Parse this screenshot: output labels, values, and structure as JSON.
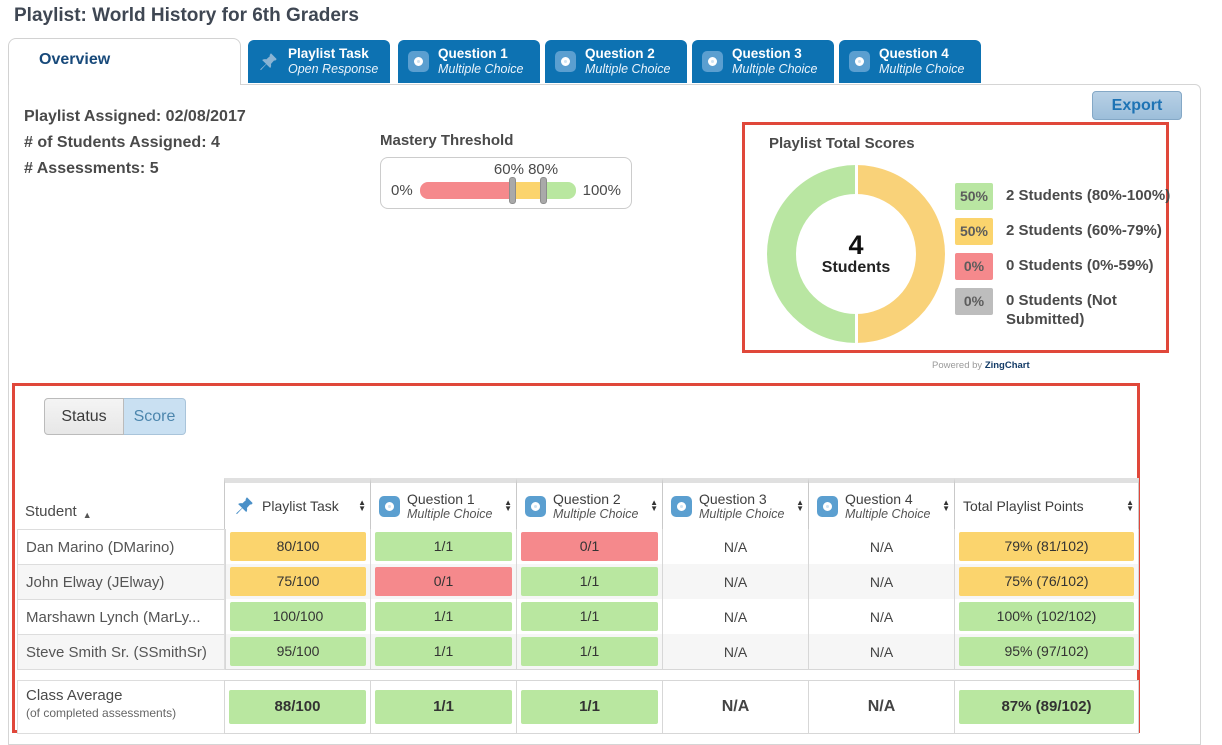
{
  "page": {
    "title": "Playlist: World History for 6th Graders"
  },
  "tabs": {
    "overview": {
      "label": "Overview"
    },
    "assessment_tabs": [
      {
        "label": "Playlist Task",
        "sublabel": "Open Response",
        "icon": "pushpin-icon"
      },
      {
        "label": "Question 1",
        "sublabel": "Multiple Choice",
        "icon": "radio-icon"
      },
      {
        "label": "Question 2",
        "sublabel": "Multiple Choice",
        "icon": "radio-icon"
      },
      {
        "label": "Question 3",
        "sublabel": "Multiple Choice",
        "icon": "radio-icon"
      },
      {
        "label": "Question 4",
        "sublabel": "Multiple Choice",
        "icon": "radio-icon"
      }
    ]
  },
  "toolbar": {
    "export_label": "Export"
  },
  "info": {
    "assigned": "Playlist Assigned: 02/08/2017",
    "students": "# of Students Assigned: 4",
    "assessments": "# Assessments: 5"
  },
  "mastery": {
    "title": "Mastery Threshold",
    "min_label": "0%",
    "max_label": "100%",
    "handles_label": "60% 80%",
    "thresholds": [
      60,
      80
    ]
  },
  "colors": {
    "green": "#b9e7a0",
    "yellow": "#fbd46d",
    "red": "#f5898c",
    "gray": "#bdbdbd",
    "donut_green": "#b9e6a2",
    "donut_yellow": "#f9d279",
    "tab_blue": "#0d72b2",
    "annotation_red": "#e0473a"
  },
  "chart_data": {
    "type": "pie",
    "title": "Playlist Total Scores",
    "labels": [
      "2 Students (80%-100%)",
      "2 Students (60%-79%)",
      "0 Students (0%-59%)",
      "0 Students (Not Submitted)"
    ],
    "values": [
      2,
      2,
      0,
      0
    ],
    "percentages": [
      "50%",
      "50%",
      "0%",
      "0%"
    ],
    "colors": [
      "#b9e6a2",
      "#f9d279",
      "#f5898c",
      "#bdbdbd"
    ],
    "center": {
      "value": "4",
      "label": "Students"
    },
    "legend_position": "right",
    "donut": true
  },
  "scores_card": {
    "title": "Playlist Total Scores",
    "center_value": "4",
    "center_label": "Students",
    "legend": [
      {
        "pct": "50%",
        "color": "#b9e6a2",
        "label": "2 Students (80%-100%)"
      },
      {
        "pct": "50%",
        "color": "#fbd46d",
        "label": "2 Students (60%-79%)"
      },
      {
        "pct": "0%",
        "color": "#f5898c",
        "label": "0 Students (0%-59%)"
      },
      {
        "pct": "0%",
        "color": "#bdbdbd",
        "label": "0 Students (Not Submitted)"
      }
    ]
  },
  "powered_by": {
    "prefix": "Powered by ",
    "brand": "ZingChart"
  },
  "toggle": {
    "status_label": "Status",
    "score_label": "Score"
  },
  "table": {
    "student_header": "Student",
    "columns": [
      {
        "label": "Playlist Task",
        "icon": "pushpin-icon"
      },
      {
        "label": "Question 1",
        "sublabel": "Multiple Choice",
        "icon": "radio-icon"
      },
      {
        "label": "Question 2",
        "sublabel": "Multiple Choice",
        "icon": "radio-icon"
      },
      {
        "label": "Question 3",
        "sublabel": "Multiple Choice",
        "icon": "radio-icon"
      },
      {
        "label": "Question 4",
        "sublabel": "Multiple Choice",
        "icon": "radio-icon"
      },
      {
        "label": "Total Playlist Points"
      }
    ],
    "rows": [
      {
        "student": "Dan Marino (DMarino)",
        "cells": [
          {
            "text": "80/100",
            "color": "yellow"
          },
          {
            "text": "1/1",
            "color": "green"
          },
          {
            "text": "0/1",
            "color": "red"
          },
          {
            "text": "N/A"
          },
          {
            "text": "N/A"
          },
          {
            "text": "79% (81/102)",
            "color": "yellow"
          }
        ]
      },
      {
        "student": "John Elway (JElway)",
        "cells": [
          {
            "text": "75/100",
            "color": "yellow"
          },
          {
            "text": "0/1",
            "color": "red"
          },
          {
            "text": "1/1",
            "color": "green"
          },
          {
            "text": "N/A"
          },
          {
            "text": "N/A"
          },
          {
            "text": "75% (76/102)",
            "color": "yellow"
          }
        ]
      },
      {
        "student": "Marshawn Lynch (MarLy...",
        "cells": [
          {
            "text": "100/100",
            "color": "green"
          },
          {
            "text": "1/1",
            "color": "green"
          },
          {
            "text": "1/1",
            "color": "green"
          },
          {
            "text": "N/A"
          },
          {
            "text": "N/A"
          },
          {
            "text": "100% (102/102)",
            "color": "green"
          }
        ]
      },
      {
        "student": "Steve Smith Sr. (SSmithSr)",
        "cells": [
          {
            "text": "95/100",
            "color": "green"
          },
          {
            "text": "1/1",
            "color": "green"
          },
          {
            "text": "1/1",
            "color": "green"
          },
          {
            "text": "N/A"
          },
          {
            "text": "N/A"
          },
          {
            "text": "95% (97/102)",
            "color": "green"
          }
        ]
      }
    ],
    "class_average": {
      "label": "Class Average",
      "sublabel": "(of completed assessments)",
      "cells": [
        {
          "text": "88/100",
          "color": "green"
        },
        {
          "text": "1/1",
          "color": "green"
        },
        {
          "text": "1/1",
          "color": "green"
        },
        {
          "text": "N/A"
        },
        {
          "text": "N/A"
        },
        {
          "text": "87% (89/102)",
          "color": "green"
        }
      ]
    }
  }
}
